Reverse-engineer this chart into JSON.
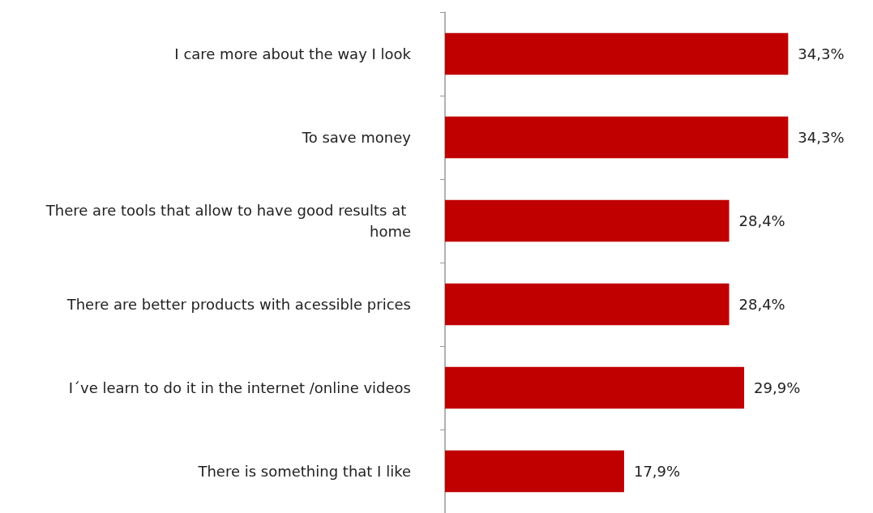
{
  "chart_data": {
    "type": "bar",
    "orientation": "horizontal",
    "categories": [
      "I care more about the way I look",
      "To save money",
      "There are tools that allow to have good results at home",
      "There are better products with acessible prices",
      "I´ve learn to do it in the internet /online videos",
      "There is something that I like"
    ],
    "values": [
      34.3,
      34.3,
      28.4,
      28.4,
      29.9,
      17.9
    ],
    "value_labels": [
      "34,3%",
      "34,3%",
      "28,4%",
      "28,4%",
      "29,9%",
      "17,9%"
    ],
    "color": "#c00000"
  }
}
